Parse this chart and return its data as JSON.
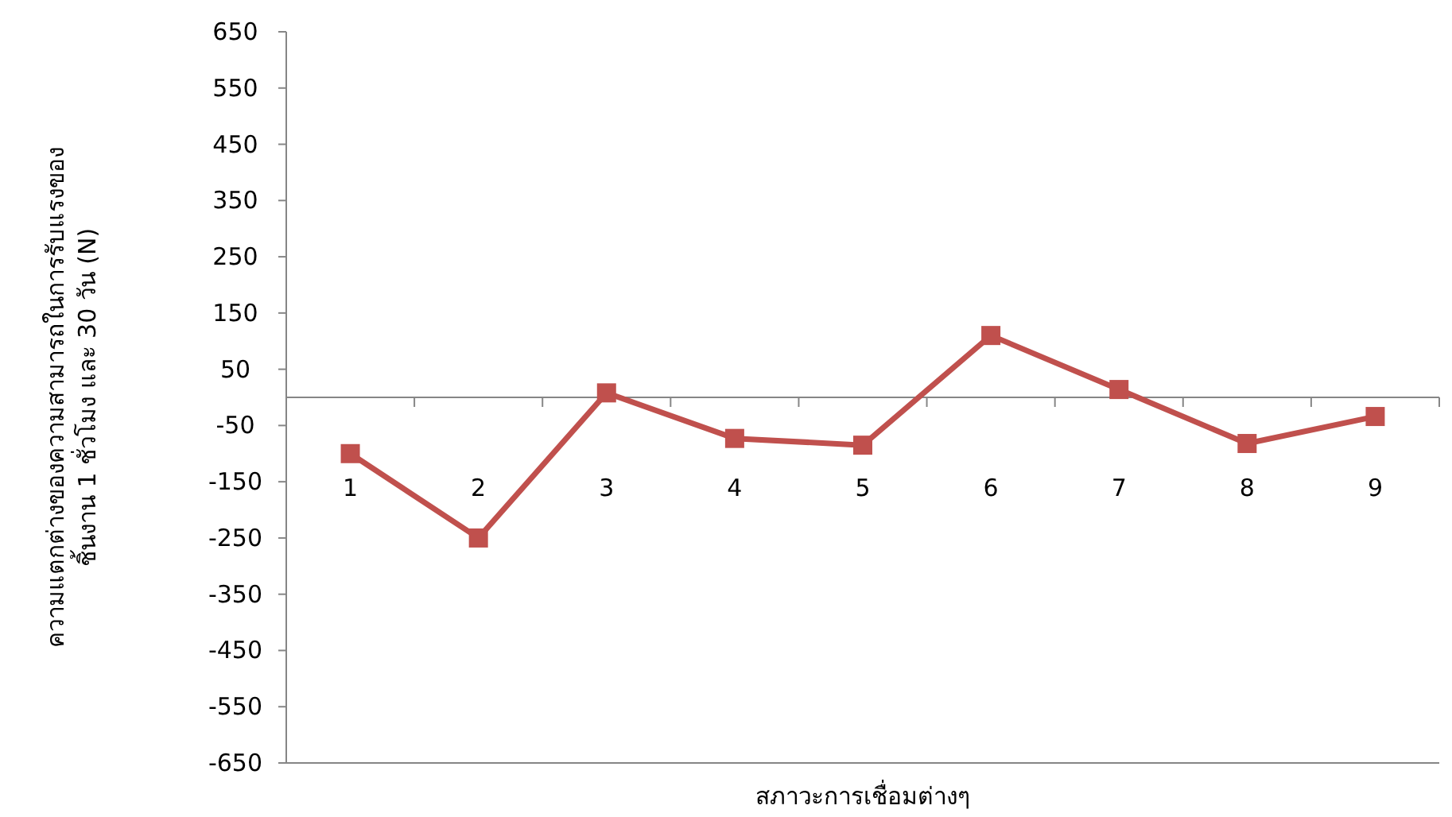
{
  "chart_data": {
    "type": "line",
    "xlabel": "สภาวะการเชื่อมต่างๆ",
    "ylabel": "ความแตกต่างของความสามารถในการรับแรงของ ชิ้นงาน 1 ชั่วโมง และ 30 วัน (N)",
    "categories": [
      "1",
      "2",
      "3",
      "4",
      "5",
      "6",
      "7",
      "8",
      "9"
    ],
    "series": [
      {
        "color": "#c0504d",
        "values": [
          -100,
          -250,
          8,
          -73,
          -85,
          110,
          14,
          -82,
          -34
        ]
      }
    ],
    "ylim": [
      -650,
      650
    ],
    "yticks": [
      -650,
      -550,
      -450,
      -350,
      -250,
      -150,
      -50,
      50,
      150,
      250,
      350,
      450,
      550,
      650
    ],
    "marker": "square",
    "line_style": "solid",
    "grid": false
  }
}
